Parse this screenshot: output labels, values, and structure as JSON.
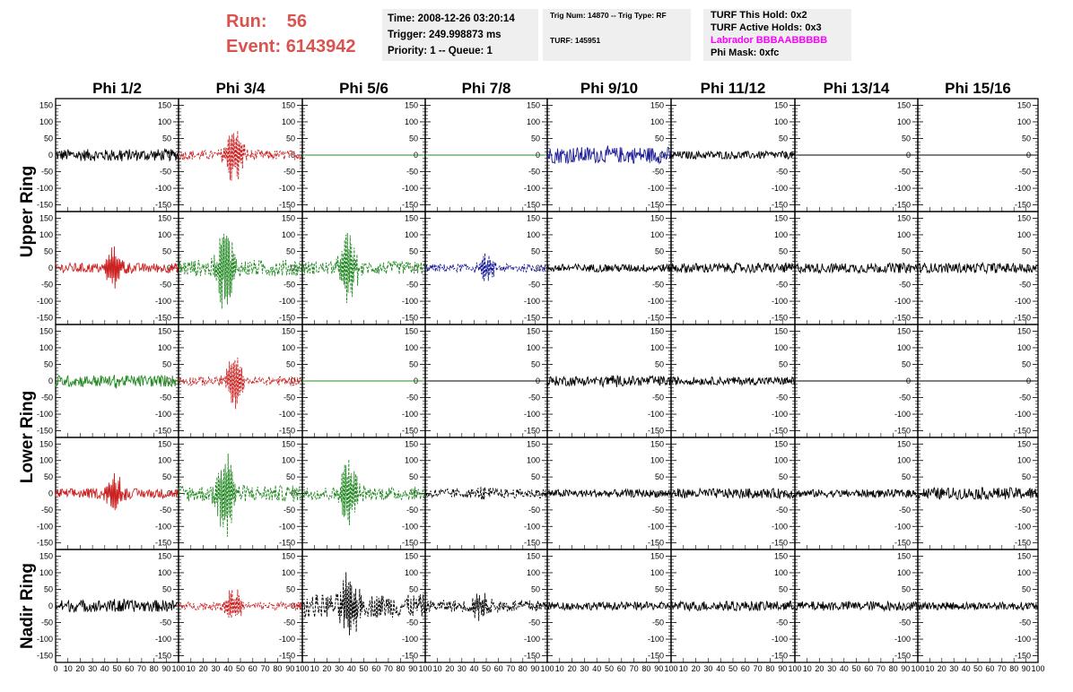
{
  "header": {
    "run_label": "Run:",
    "run_value": "56",
    "event_label": "Event:",
    "event_value": "6143942"
  },
  "time_box": {
    "time": "Time: 2008-12-26 03:20:14",
    "trigger": "Trigger: 249.998873 ms",
    "priority": "Priority: 1 -- Queue: 1"
  },
  "trig_box": {
    "trig": "Trig Num: 14870 -- Trig Type: RF",
    "turf": "TURF: 145951"
  },
  "turf_box": {
    "this_hold": "TURF This Hold: 0x2",
    "active_holds": "TURF Active Holds: 0x3",
    "labrador": "Labrador BBBAABBBBB",
    "phi_mask": "Phi Mask: 0xfc"
  },
  "colors": {
    "black": "#000000",
    "red": "#cc2222",
    "green": "#228822",
    "blue": "#1a1a99",
    "magenta": "#ff00ff",
    "run_text": "#d9534f",
    "box_bg": "#efefef"
  },
  "chart_data": {
    "type": "line",
    "columns": [
      "Phi 1/2",
      "Phi 3/4",
      "Phi 5/6",
      "Phi 7/8",
      "Phi 9/10",
      "Phi 11/12",
      "Phi 13/14",
      "Phi 15/16"
    ],
    "rings": [
      "Upper Ring",
      "Lower Ring",
      "Nadir Ring"
    ],
    "ylim": [
      -170,
      170
    ],
    "xlim": [
      0,
      100
    ],
    "y_ticks": [
      150,
      100,
      50,
      0,
      -50,
      -100,
      -150
    ],
    "x_ticks": [
      0,
      10,
      20,
      30,
      40,
      50,
      60,
      70,
      80,
      90,
      100
    ],
    "panels": [
      [
        {
          "color": "black",
          "dashed": false,
          "amp": 18,
          "pulse": 10,
          "center": 50,
          "flat": false
        },
        {
          "color": "red",
          "dashed": true,
          "amp": 15,
          "pulse": 90,
          "center": 45,
          "flat": false
        },
        {
          "color": "green",
          "dashed": false,
          "amp": 0,
          "pulse": 0,
          "center": 50,
          "flat": true
        },
        {
          "color": "green",
          "dashed": false,
          "amp": 0,
          "pulse": 0,
          "center": 50,
          "flat": true
        },
        {
          "color": "blue",
          "dashed": false,
          "amp": 25,
          "pulse": 5,
          "center": 50,
          "flat": false
        },
        {
          "color": "black",
          "dashed": false,
          "amp": 12,
          "pulse": 0,
          "center": 50,
          "flat": false
        },
        {
          "color": "black",
          "dashed": false,
          "amp": 0,
          "pulse": 0,
          "center": 50,
          "flat": true
        },
        {
          "color": "black",
          "dashed": false,
          "amp": 0,
          "pulse": 0,
          "center": 50,
          "flat": true
        }
      ],
      [
        {
          "color": "red",
          "dashed": false,
          "amp": 15,
          "pulse": 60,
          "center": 48,
          "flat": false
        },
        {
          "color": "green",
          "dashed": true,
          "amp": 25,
          "pulse": 140,
          "center": 38,
          "flat": false
        },
        {
          "color": "green",
          "dashed": true,
          "amp": 20,
          "pulse": 110,
          "center": 38,
          "flat": false
        },
        {
          "color": "blue",
          "dashed": true,
          "amp": 12,
          "pulse": 40,
          "center": 50,
          "flat": false
        },
        {
          "color": "black",
          "dashed": false,
          "amp": 12,
          "pulse": 0,
          "center": 50,
          "flat": false
        },
        {
          "color": "black",
          "dashed": false,
          "amp": 15,
          "pulse": 0,
          "center": 50,
          "flat": false
        },
        {
          "color": "black",
          "dashed": false,
          "amp": 15,
          "pulse": 0,
          "center": 50,
          "flat": false
        },
        {
          "color": "black",
          "dashed": false,
          "amp": 15,
          "pulse": 0,
          "center": 50,
          "flat": false
        }
      ],
      [
        {
          "color": "green",
          "dashed": false,
          "amp": 18,
          "pulse": 8,
          "center": 50,
          "flat": false
        },
        {
          "color": "red",
          "dashed": true,
          "amp": 14,
          "pulse": 80,
          "center": 45,
          "flat": false
        },
        {
          "color": "green",
          "dashed": false,
          "amp": 0,
          "pulse": 0,
          "center": 50,
          "flat": true
        },
        {
          "color": "black",
          "dashed": false,
          "amp": 0,
          "pulse": 0,
          "center": 50,
          "flat": true
        },
        {
          "color": "black",
          "dashed": false,
          "amp": 15,
          "pulse": 10,
          "center": 50,
          "flat": false
        },
        {
          "color": "black",
          "dashed": false,
          "amp": 12,
          "pulse": 0,
          "center": 50,
          "flat": false
        },
        {
          "color": "black",
          "dashed": false,
          "amp": 0,
          "pulse": 0,
          "center": 50,
          "flat": true
        },
        {
          "color": "black",
          "dashed": false,
          "amp": 0,
          "pulse": 0,
          "center": 50,
          "flat": true
        }
      ],
      [
        {
          "color": "red",
          "dashed": false,
          "amp": 15,
          "pulse": 60,
          "center": 48,
          "flat": false
        },
        {
          "color": "green",
          "dashed": true,
          "amp": 25,
          "pulse": 150,
          "center": 38,
          "flat": false
        },
        {
          "color": "green",
          "dashed": true,
          "amp": 20,
          "pulse": 120,
          "center": 38,
          "flat": false
        },
        {
          "color": "black",
          "dashed": true,
          "amp": 14,
          "pulse": 15,
          "center": 50,
          "flat": false
        },
        {
          "color": "black",
          "dashed": false,
          "amp": 12,
          "pulse": 0,
          "center": 50,
          "flat": false
        },
        {
          "color": "black",
          "dashed": false,
          "amp": 15,
          "pulse": 0,
          "center": 50,
          "flat": false
        },
        {
          "color": "black",
          "dashed": false,
          "amp": 12,
          "pulse": 0,
          "center": 50,
          "flat": false
        },
        {
          "color": "black",
          "dashed": false,
          "amp": 18,
          "pulse": 0,
          "center": 50,
          "flat": false
        }
      ],
      [
        {
          "color": "black",
          "dashed": false,
          "amp": 18,
          "pulse": 10,
          "center": 50,
          "flat": false
        },
        {
          "color": "red",
          "dashed": true,
          "amp": 12,
          "pulse": 60,
          "center": 45,
          "flat": false
        },
        {
          "color": "black",
          "dashed": true,
          "amp": 35,
          "pulse": 110,
          "center": 38,
          "flat": false
        },
        {
          "color": "black",
          "dashed": true,
          "amp": 18,
          "pulse": 40,
          "center": 45,
          "flat": false
        },
        {
          "color": "black",
          "dashed": false,
          "amp": 12,
          "pulse": 0,
          "center": 50,
          "flat": false
        },
        {
          "color": "black",
          "dashed": false,
          "amp": 15,
          "pulse": 0,
          "center": 50,
          "flat": false
        },
        {
          "color": "black",
          "dashed": false,
          "amp": 14,
          "pulse": 0,
          "center": 50,
          "flat": false
        },
        {
          "color": "black",
          "dashed": false,
          "amp": 12,
          "pulse": 0,
          "center": 50,
          "flat": false
        }
      ]
    ]
  }
}
